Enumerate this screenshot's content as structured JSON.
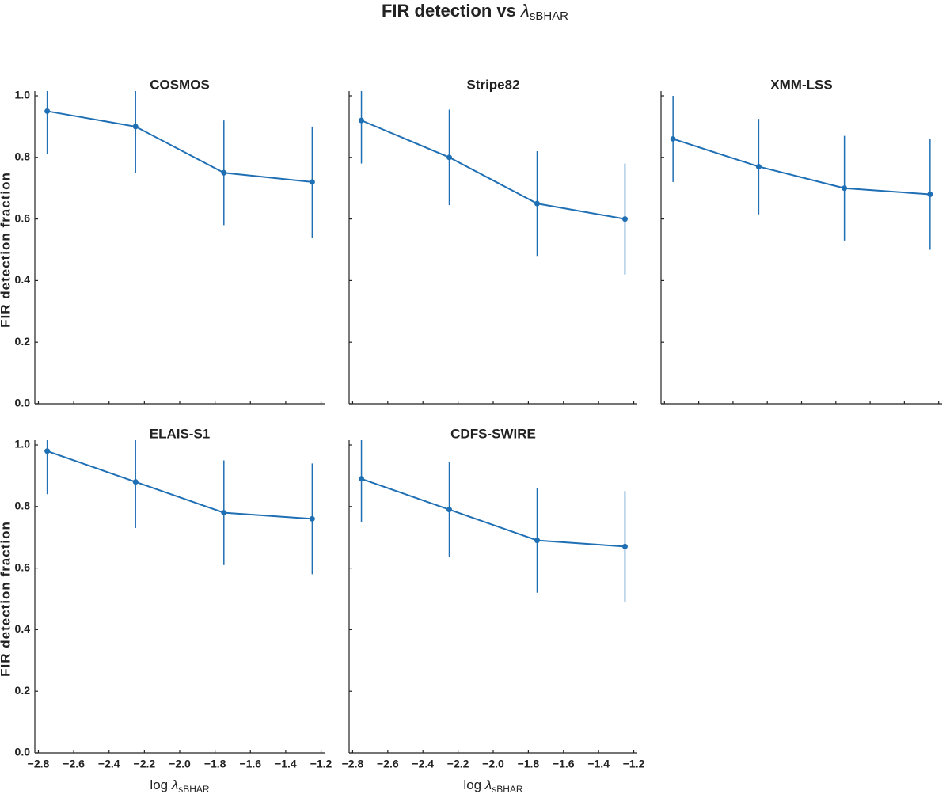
{
  "title": {
    "text": "FIR detection vs",
    "symbol": "λ",
    "subscript": "sBHAR"
  },
  "chart_data": [
    {
      "type": "line",
      "title": "COSMOS",
      "x": [
        -2.75,
        -2.25,
        -1.75,
        -1.25
      ],
      "values": [
        0.95,
        0.9,
        0.75,
        0.72
      ],
      "errors": [
        0.14,
        0.15,
        0.17,
        0.18
      ],
      "color": "#1f6fb4",
      "xlim": [
        -2.82,
        -1.18
      ],
      "ylim": [
        0,
        1
      ],
      "xticks": [
        -2.8,
        -2.6,
        -2.4,
        -2.2,
        -2.0,
        -1.8,
        -1.6,
        -1.4,
        -1.2
      ],
      "yticks": [
        {
          "value": 0,
          "label": "0.0"
        },
        0.2,
        0.4,
        0.6,
        0.8,
        {
          "value": 1,
          "label": "1.0"
        }
      ],
      "ylabel": "FIR detection fraction"
    },
    {
      "type": "line",
      "title": "Stripe82",
      "x": [
        -2.75,
        -2.25,
        -1.75,
        -1.25
      ],
      "values": [
        0.92,
        0.8,
        0.65,
        0.6
      ],
      "errors": [
        0.14,
        0.155,
        0.17,
        0.18
      ],
      "color": "#1f6fb4",
      "xlim": [
        -2.82,
        -1.18
      ],
      "ylim": [
        0,
        1
      ],
      "xticks": [
        -2.8,
        -2.6,
        -2.4,
        -2.2,
        -2.0,
        -1.8,
        -1.6,
        -1.4,
        -1.2
      ],
      "yticks": [
        0,
        0.2,
        0.4,
        0.6,
        0.8,
        1
      ]
    },
    {
      "type": "line",
      "title": "XMM-LSS",
      "x": [
        -2.75,
        -2.25,
        -1.75,
        -1.25
      ],
      "values": [
        0.86,
        0.77,
        0.7,
        0.68
      ],
      "errors": [
        0.14,
        0.155,
        0.17,
        0.18
      ],
      "color": "#1f6fb4",
      "xlim": [
        -2.82,
        -1.18
      ],
      "ylim": [
        0,
        1
      ],
      "xticks": [
        -2.8,
        -2.6,
        -2.4,
        -2.2,
        -2.0,
        -1.8,
        -1.6,
        -1.4,
        -1.2
      ],
      "yticks": [
        0,
        0.2,
        0.4,
        0.6,
        0.8,
        1
      ]
    },
    {
      "type": "line",
      "title": "ELAIS-S1",
      "x": [
        -2.75,
        -2.25,
        -1.75,
        -1.25
      ],
      "values": [
        0.98,
        0.88,
        0.78,
        0.76
      ],
      "errors": [
        0.14,
        0.15,
        0.17,
        0.18
      ],
      "color": "#1f6fb4",
      "xlim": [
        -2.82,
        -1.18
      ],
      "ylim": [
        0,
        1
      ],
      "xticks": [
        {
          "value": -2.8,
          "label": "−2.8"
        },
        {
          "value": -2.6,
          "label": "−2.6"
        },
        {
          "value": -2.4,
          "label": "−2.4"
        },
        {
          "value": -2.2,
          "label": "−2.2"
        },
        {
          "value": -2.0,
          "label": "−2.0"
        },
        {
          "value": -1.8,
          "label": "−1.8"
        },
        {
          "value": -1.6,
          "label": "−1.6"
        },
        {
          "value": -1.4,
          "label": "−1.4"
        },
        {
          "value": -1.2,
          "label": "−1.2"
        }
      ],
      "yticks": [
        {
          "value": 0,
          "label": "0.0"
        },
        0.2,
        0.4,
        0.6,
        0.8,
        {
          "value": 1,
          "label": "1.0"
        }
      ],
      "ylabel": "FIR detection fraction",
      "xlabel": {
        "text": "log",
        "symbol": "λ",
        "subscript": "sBHAR"
      }
    },
    {
      "type": "line",
      "title": "CDFS-SWIRE",
      "x": [
        -2.75,
        -2.25,
        -1.75,
        -1.25
      ],
      "values": [
        0.89,
        0.79,
        0.69,
        0.67
      ],
      "errors": [
        0.14,
        0.155,
        0.17,
        0.18
      ],
      "color": "#1f6fb4",
      "xlim": [
        -2.82,
        -1.18
      ],
      "ylim": [
        0,
        1
      ],
      "xticks": [
        {
          "value": -2.8,
          "label": "−2.8"
        },
        {
          "value": -2.6,
          "label": "−2.6"
        },
        {
          "value": -2.4,
          "label": "−2.4"
        },
        {
          "value": -2.2,
          "label": "−2.2"
        },
        {
          "value": -2.0,
          "label": "−2.0"
        },
        {
          "value": -1.8,
          "label": "−1.8"
        },
        {
          "value": -1.6,
          "label": "−1.6"
        },
        {
          "value": -1.4,
          "label": "−1.4"
        },
        {
          "value": -1.2,
          "label": "−1.2"
        }
      ],
      "yticks": [
        0,
        0.2,
        0.4,
        0.6,
        0.8,
        1
      ],
      "xlabel": {
        "text": "log",
        "symbol": "λ",
        "subscript": "sBHAR"
      }
    }
  ]
}
